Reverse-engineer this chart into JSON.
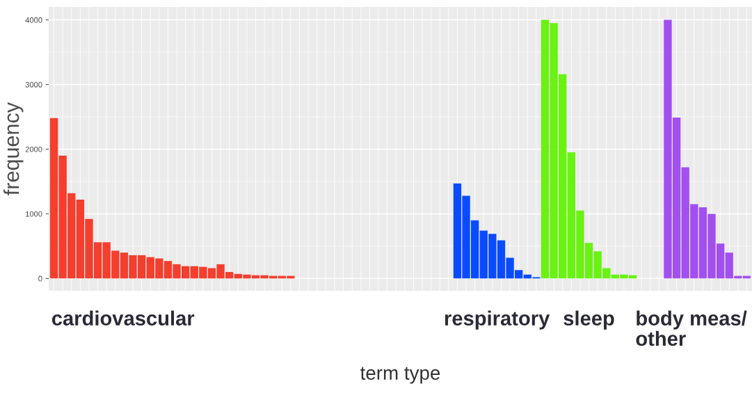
{
  "chart_data": {
    "type": "bar",
    "xlabel": "term type",
    "ylabel": "frequency",
    "categories": [
      null,
      null,
      null,
      null,
      null,
      null,
      null,
      null,
      null,
      null,
      null,
      null,
      null,
      null,
      null,
      null,
      null,
      null,
      null,
      null,
      null,
      null,
      null,
      null,
      null,
      null,
      null,
      null,
      null,
      null,
      null,
      null,
      null,
      null,
      null,
      null,
      null,
      null,
      null,
      null,
      null,
      null,
      null,
      null,
      null,
      null,
      null,
      null,
      null,
      null,
      null,
      null,
      null,
      null,
      null,
      null,
      null,
      null,
      null,
      null,
      null,
      null,
      null,
      null,
      null,
      null,
      null,
      null,
      null,
      null,
      null,
      null,
      null,
      null,
      null,
      null,
      null,
      null,
      null,
      null
    ],
    "values": [
      2480,
      1900,
      1320,
      1220,
      920,
      560,
      560,
      430,
      400,
      360,
      360,
      330,
      310,
      270,
      220,
      190,
      190,
      180,
      160,
      220,
      100,
      70,
      60,
      50,
      50,
      40,
      40,
      40,
      null,
      null,
      null,
      null,
      null,
      null,
      null,
      null,
      null,
      null,
      null,
      null,
      null,
      null,
      null,
      null,
      null,
      null,
      1470,
      1280,
      900,
      740,
      690,
      590,
      320,
      130,
      60,
      20,
      4000,
      3950,
      3160,
      1950,
      1050,
      550,
      420,
      160,
      60,
      60,
      50,
      null,
      null,
      null,
      4000,
      2490,
      1720,
      1150,
      1100,
      1000,
      540,
      400,
      40,
      40
    ],
    "colors": [
      "#f43e2e",
      "#f43e2e",
      "#f43e2e",
      "#f43e2e",
      "#f43e2e",
      "#f43e2e",
      "#f43e2e",
      "#f43e2e",
      "#f43e2e",
      "#f43e2e",
      "#f43e2e",
      "#f43e2e",
      "#f43e2e",
      "#f43e2e",
      "#f43e2e",
      "#f43e2e",
      "#f43e2e",
      "#f43e2e",
      "#f43e2e",
      "#f43e2e",
      "#f43e2e",
      "#f43e2e",
      "#f43e2e",
      "#f43e2e",
      "#f43e2e",
      "#f43e2e",
      "#f43e2e",
      "#f43e2e",
      null,
      null,
      null,
      null,
      null,
      null,
      null,
      null,
      null,
      null,
      null,
      null,
      null,
      null,
      null,
      null,
      null,
      null,
      "#0a4bff",
      "#0a4bff",
      "#0a4bff",
      "#0a4bff",
      "#0a4bff",
      "#0a4bff",
      "#0a4bff",
      "#0a4bff",
      "#0a4bff",
      "#0a4bff",
      "#69f212",
      "#69f212",
      "#69f212",
      "#69f212",
      "#69f212",
      "#69f212",
      "#69f212",
      "#69f212",
      "#69f212",
      "#69f212",
      "#69f212",
      null,
      null,
      null,
      "#a24ff0",
      "#a24ff0",
      "#a24ff0",
      "#a24ff0",
      "#a24ff0",
      "#a24ff0",
      "#a24ff0",
      "#a24ff0",
      "#a24ff0",
      "#a24ff0"
    ],
    "annotations": [
      "cardiovascular",
      "respiratory",
      "sleep",
      "body meas/\nother"
    ],
    "ylim": [
      -190,
      4200
    ],
    "yticks": [
      0,
      1000,
      2000,
      3000,
      4000
    ],
    "grid": true
  }
}
